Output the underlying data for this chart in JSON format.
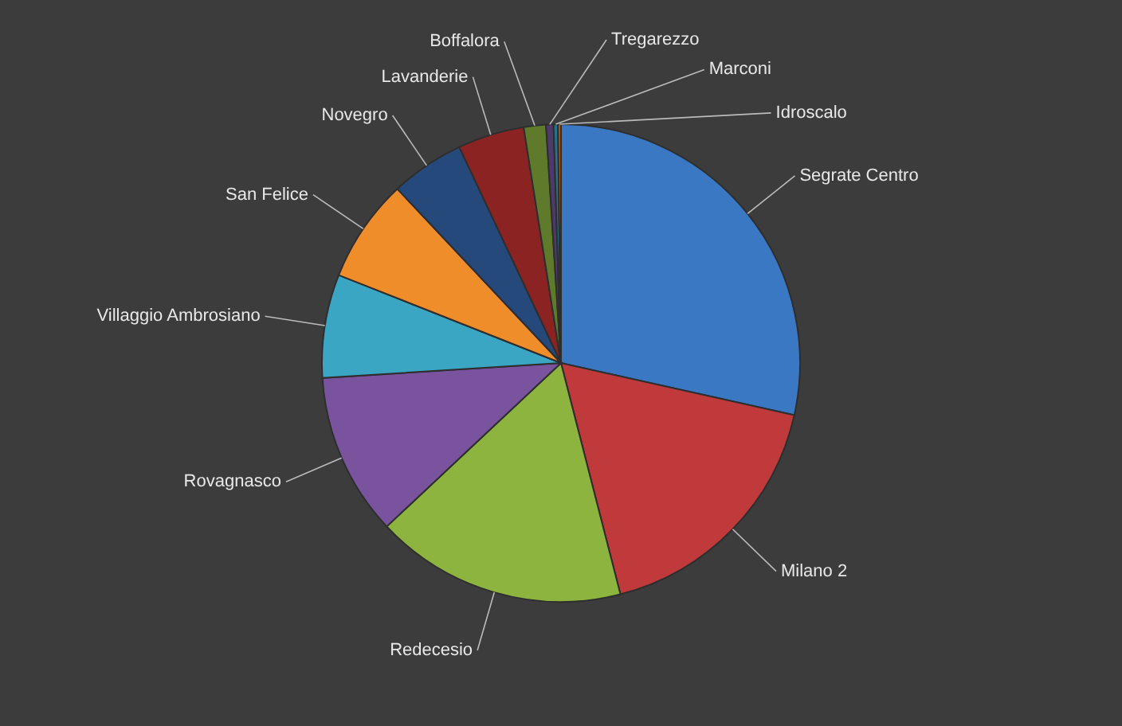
{
  "chart_data": {
    "type": "pie",
    "categories": [
      "Segrate Centro",
      "Milano 2",
      "Redecesio",
      "Rovagnasco",
      "Villaggio Ambrosiano",
      "San Felice",
      "Novegro",
      "Lavanderie",
      "Boffalora",
      "Tregarezzo",
      "Marconi",
      "Idroscalo"
    ],
    "values": [
      28.5,
      17.5,
      17,
      11,
      7,
      7,
      5,
      4.5,
      1.5,
      0.5,
      0.3,
      0.2
    ],
    "colors": [
      "#3a78c3",
      "#c0393b",
      "#8db43e",
      "#7a539e",
      "#3ba6c4",
      "#f08d2b",
      "#24497a",
      "#8b2323",
      "#5e7a2a",
      "#4d3a6b",
      "#27708a",
      "#a85f1e"
    ]
  }
}
